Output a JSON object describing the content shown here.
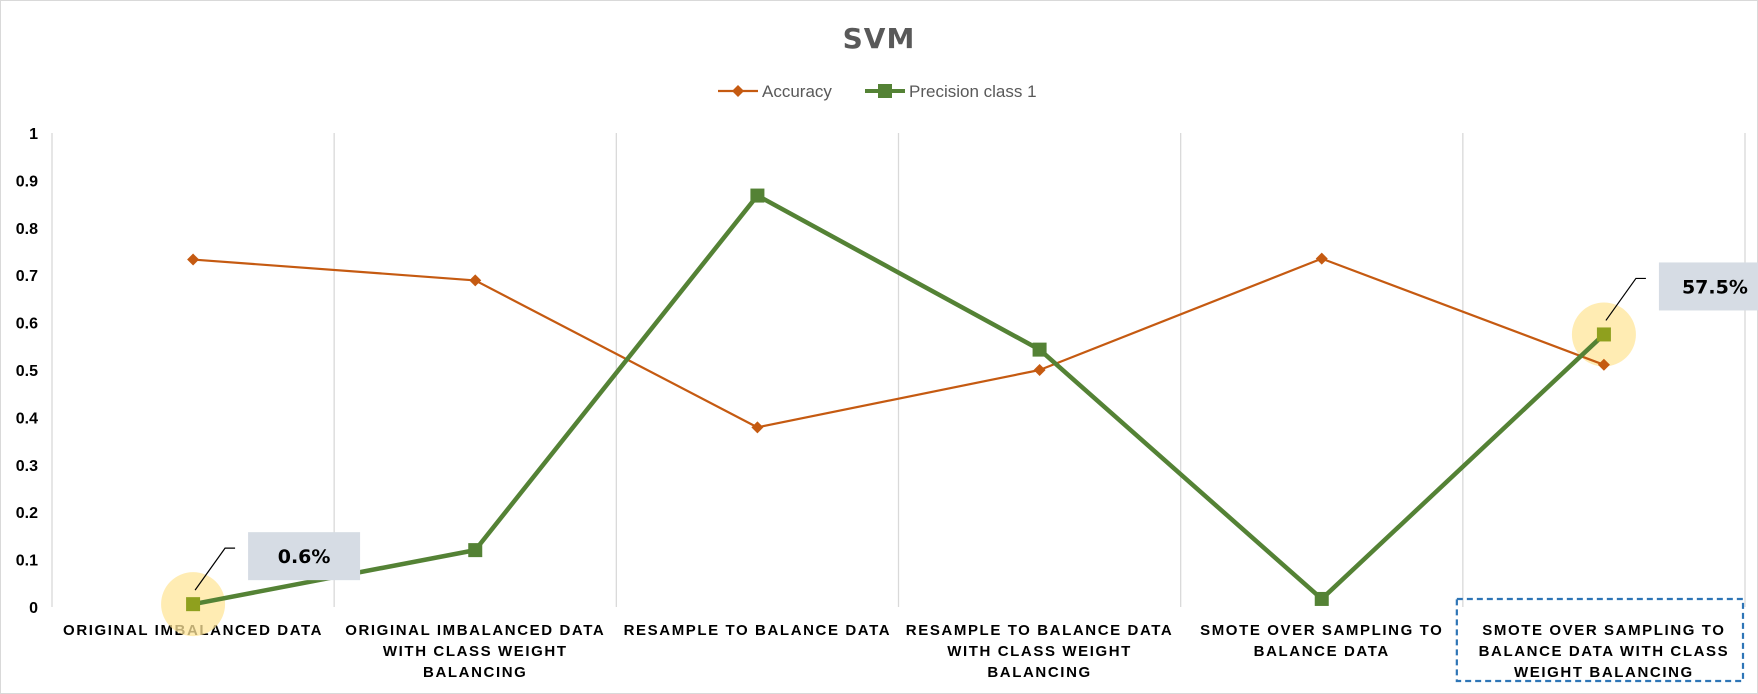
{
  "chart_data": {
    "type": "line",
    "title": "SVM",
    "categories": [
      [
        "ORIGINAL IMBALANCED DATA"
      ],
      [
        "ORIGINAL IMBALANCED DATA",
        "WITH CLASS WEIGHT",
        "BALANCING"
      ],
      [
        "RESAMPLE TO BALANCE DATA"
      ],
      [
        "RESAMPLE TO BALANCE DATA",
        "WITH CLASS WEIGHT",
        "BALANCING"
      ],
      [
        "SMOTE OVER SAMPLING TO",
        "BALANCE DATA"
      ],
      [
        "SMOTE OVER SAMPLING TO",
        "BALANCE DATA WITH CLASS",
        "WEIGHT BALANCING"
      ]
    ],
    "ylim": [
      0,
      1
    ],
    "yticks": [
      "0",
      "0.1",
      "0.2",
      "0.3",
      "0.4",
      "0.5",
      "0.6",
      "0.7",
      "0.8",
      "0.9",
      "1"
    ],
    "grid": "vertical",
    "legend_position": "top",
    "series": [
      {
        "name": "Accuracy",
        "color": "#C55A11",
        "marker": "diamond",
        "values": [
          0.733,
          0.689,
          0.379,
          0.5,
          0.735,
          0.511
        ]
      },
      {
        "name": "Precision class 1",
        "color": "#548235",
        "marker": "square",
        "values": [
          0.006,
          0.12,
          0.868,
          0.543,
          0.017,
          0.575
        ]
      }
    ],
    "annotations": [
      {
        "series": 1,
        "index": 0,
        "label": "0.6%"
      },
      {
        "series": 1,
        "index": 5,
        "label": "57.5%"
      }
    ],
    "highlighted_category": 5
  }
}
